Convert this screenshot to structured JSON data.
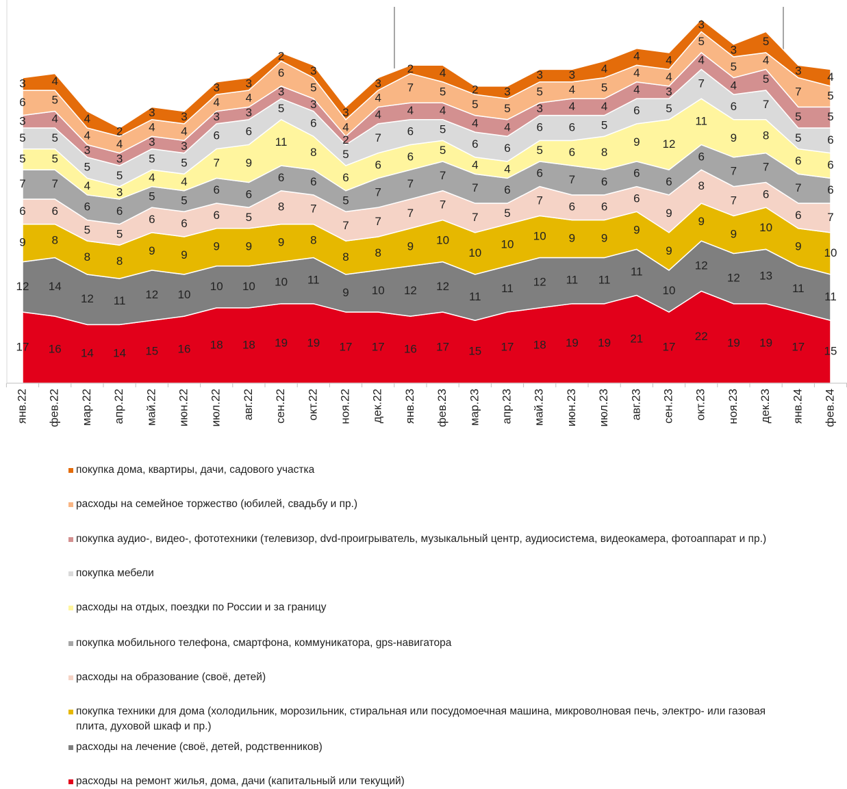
{
  "chart_data": {
    "type": "stacked-area",
    "categories": [
      "янв.22",
      "фев.22",
      "мар.22",
      "апр.22",
      "май.22",
      "июн.22",
      "июл.22",
      "авг.22",
      "сен.22",
      "окт.22",
      "ноя.22",
      "дек.22",
      "янв.23",
      "фев.23",
      "мар.23",
      "апр.23",
      "май.23",
      "июн.23",
      "июл.23",
      "авг.23",
      "сен.23",
      "окт.23",
      "ноя.23",
      "дек.23",
      "янв.24",
      "фев.24"
    ],
    "series": [
      {
        "name": "расходы на ремонт жилья, дома, дачи (капитальный или текущий)",
        "color": "#e2001a",
        "values": [
          17,
          16,
          14,
          14,
          15,
          16,
          18,
          18,
          19,
          19,
          17,
          17,
          16,
          17,
          15,
          17,
          18,
          19,
          19,
          21,
          17,
          22,
          19,
          19,
          17,
          15
        ]
      },
      {
        "name": "расходы на лечение (своё, детей, родственников)",
        "color": "#7f7f7f",
        "values": [
          12,
          14,
          12,
          11,
          12,
          10,
          10,
          10,
          10,
          11,
          9,
          10,
          12,
          12,
          11,
          11,
          12,
          11,
          11,
          11,
          10,
          12,
          12,
          13,
          11,
          11
        ]
      },
      {
        "name": "покупка техники для дома (холодильник, морозильник, стиральная или посудомоечная машина, микроволновая печь, электро- или газовая плита, духовой шкаф и пр.)",
        "color": "#e6b800",
        "values": [
          9,
          8,
          8,
          8,
          9,
          9,
          9,
          9,
          9,
          8,
          8,
          8,
          9,
          10,
          10,
          10,
          10,
          9,
          9,
          9,
          9,
          9,
          9,
          10,
          9,
          10
        ]
      },
      {
        "name": "расходы на образование (своё, детей)",
        "color": "#f5d3c6",
        "values": [
          6,
          6,
          5,
          5,
          6,
          6,
          6,
          5,
          8,
          7,
          7,
          7,
          7,
          7,
          7,
          5,
          7,
          6,
          6,
          6,
          9,
          8,
          7,
          6,
          6,
          7
        ]
      },
      {
        "name": "покупка мобильного телефона, смартфона, коммуникатора, gps-навигатора",
        "color": "#a6a6a6",
        "values": [
          7,
          7,
          6,
          6,
          5,
          5,
          6,
          6,
          6,
          6,
          5,
          7,
          7,
          7,
          7,
          6,
          6,
          7,
          6,
          6,
          6,
          6,
          7,
          7,
          7,
          6
        ]
      },
      {
        "name": "расходы на отдых, поездки по России и за границу",
        "color": "#fff59e",
        "values": [
          5,
          5,
          4,
          3,
          4,
          4,
          7,
          9,
          11,
          8,
          6,
          6,
          6,
          5,
          4,
          4,
          5,
          6,
          8,
          9,
          12,
          11,
          9,
          8,
          6,
          6
        ]
      },
      {
        "name": "покупка мебели",
        "color": "#dadada",
        "values": [
          5,
          5,
          5,
          5,
          5,
          5,
          6,
          6,
          5,
          6,
          5,
          7,
          6,
          5,
          6,
          6,
          6,
          6,
          5,
          6,
          5,
          7,
          6,
          7,
          5,
          6
        ]
      },
      {
        "name": "покупка аудио-, видео-, фототехники (телевизор, dvd-проигрыватель, музыкальный центр, аудиосистема, видеокамера, фотоаппарат и пр.)",
        "color": "#d39090",
        "values": [
          3,
          4,
          3,
          3,
          3,
          3,
          3,
          3,
          3,
          3,
          2,
          4,
          4,
          4,
          4,
          4,
          3,
          4,
          4,
          4,
          3,
          4,
          4,
          5,
          5,
          5
        ]
      },
      {
        "name": "расходы на семейное торжество (юбилей, свадьбу и пр.)",
        "color": "#f9b684",
        "values": [
          6,
          5,
          4,
          4,
          4,
          4,
          4,
          4,
          6,
          5,
          4,
          4,
          7,
          5,
          5,
          5,
          5,
          4,
          5,
          4,
          4,
          5,
          5,
          4,
          7,
          5
        ]
      },
      {
        "name": "покупка дома, квартиры, дачи, садового участка",
        "color": "#e46c0a",
        "values": [
          3,
          4,
          4,
          2,
          3,
          3,
          3,
          3,
          2,
          3,
          3,
          3,
          2,
          4,
          2,
          3,
          3,
          3,
          4,
          4,
          4,
          3,
          3,
          5,
          3,
          4
        ]
      }
    ]
  }
}
